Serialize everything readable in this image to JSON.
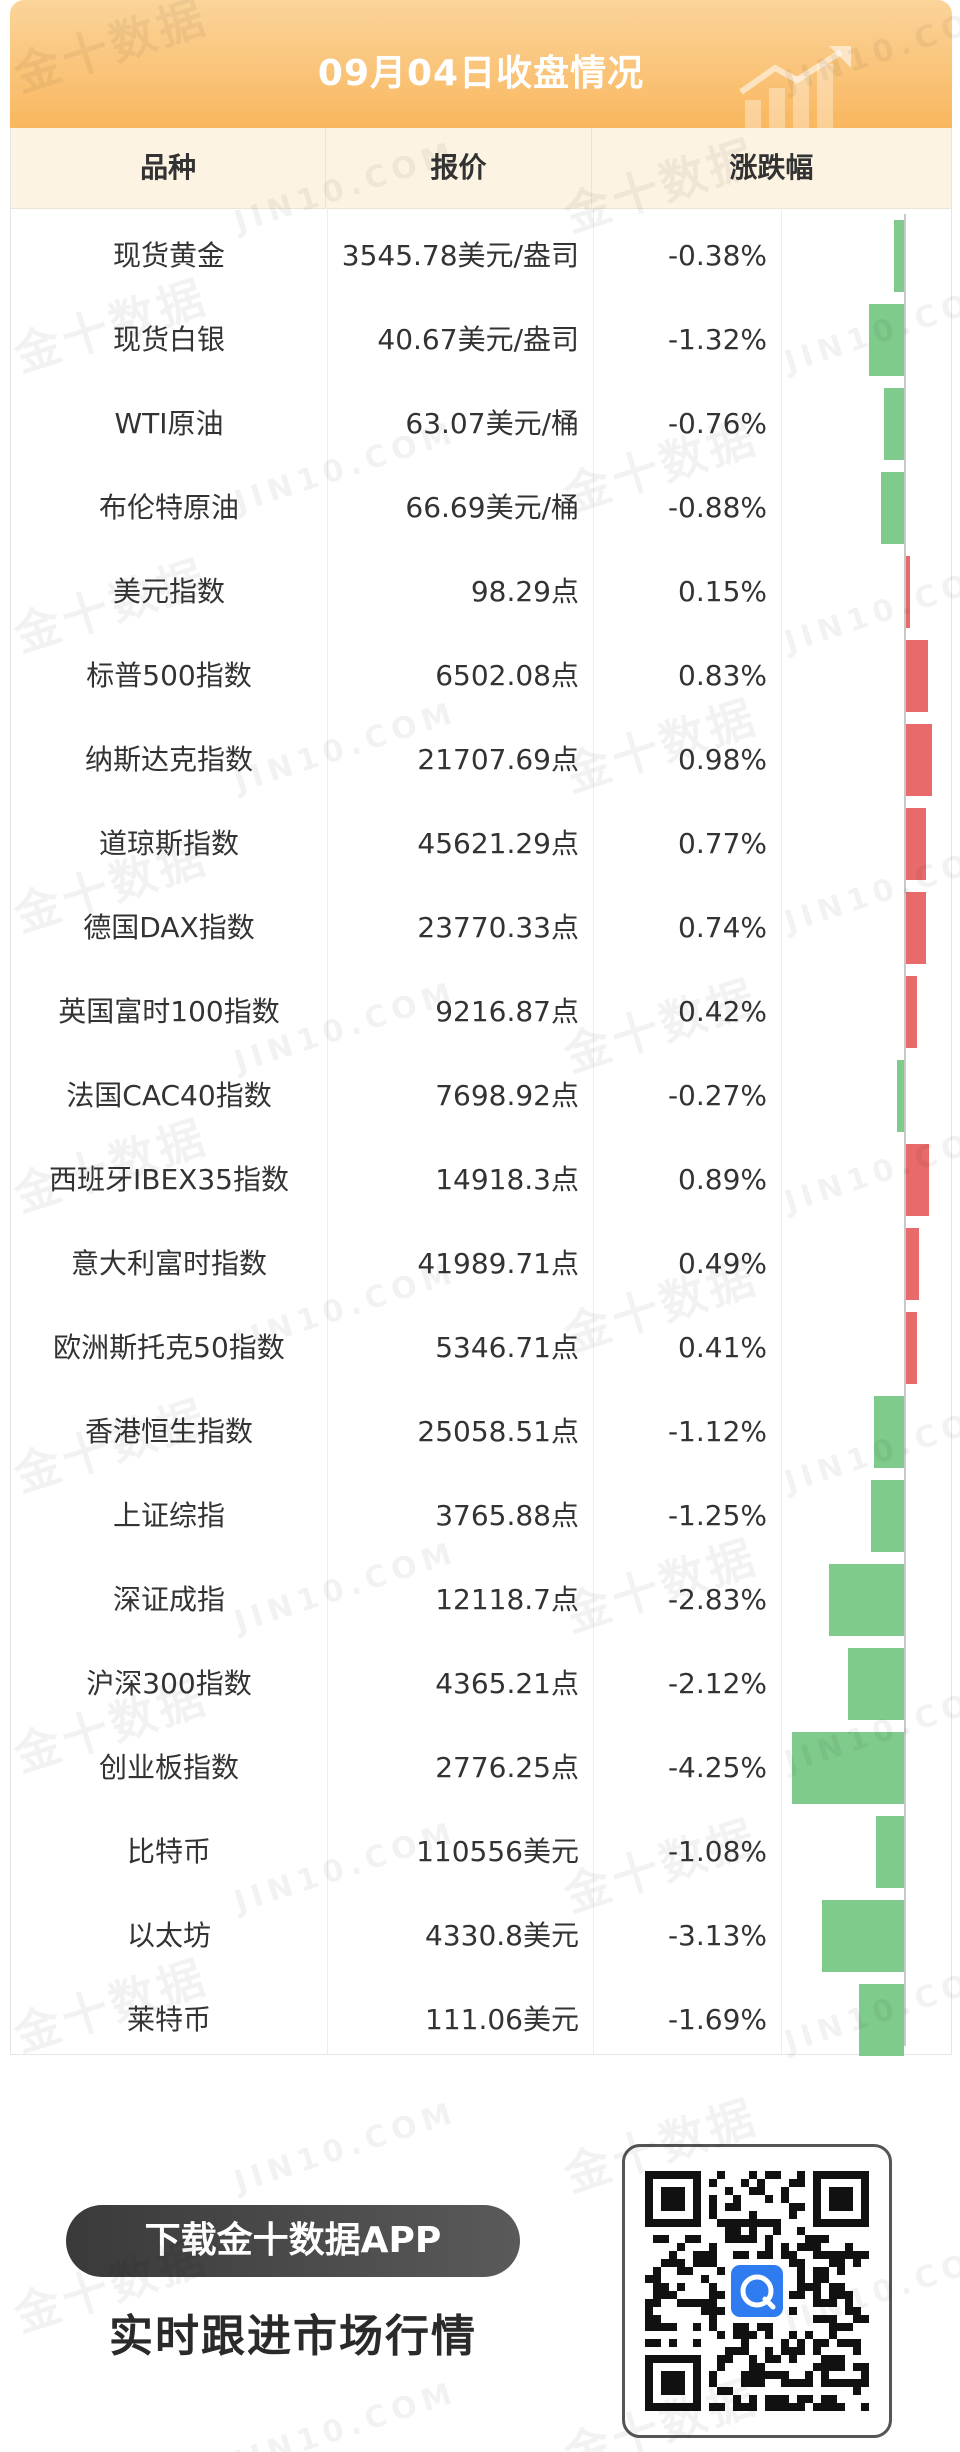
{
  "header": {
    "title": "09月04日收盘情况"
  },
  "table": {
    "columns": [
      "品种",
      "报价",
      "涨跌幅"
    ],
    "rows": [
      {
        "name": "现货黄金",
        "price": "3545.78美元/盎司",
        "change": "-0.38%",
        "value": -0.38
      },
      {
        "name": "现货白银",
        "price": "40.67美元/盎司",
        "change": "-1.32%",
        "value": -1.32
      },
      {
        "name": "WTI原油",
        "price": "63.07美元/桶",
        "change": "-0.76%",
        "value": -0.76
      },
      {
        "name": "布伦特原油",
        "price": "66.69美元/桶",
        "change": "-0.88%",
        "value": -0.88
      },
      {
        "name": "美元指数",
        "price": "98.29点",
        "change": "0.15%",
        "value": 0.15
      },
      {
        "name": "标普500指数",
        "price": "6502.08点",
        "change": "0.83%",
        "value": 0.83
      },
      {
        "name": "纳斯达克指数",
        "price": "21707.69点",
        "change": "0.98%",
        "value": 0.98
      },
      {
        "name": "道琼斯指数",
        "price": "45621.29点",
        "change": "0.77%",
        "value": 0.77
      },
      {
        "name": "德国DAX指数",
        "price": "23770.33点",
        "change": "0.74%",
        "value": 0.74
      },
      {
        "name": "英国富时100指数",
        "price": "9216.87点",
        "change": "0.42%",
        "value": 0.42
      },
      {
        "name": "法国CAC40指数",
        "price": "7698.92点",
        "change": "-0.27%",
        "value": -0.27
      },
      {
        "name": "西班牙IBEX35指数",
        "price": "14918.3点",
        "change": "0.89%",
        "value": 0.89
      },
      {
        "name": "意大利富时指数",
        "price": "41989.71点",
        "change": "0.49%",
        "value": 0.49
      },
      {
        "name": "欧洲斯托克50指数",
        "price": "5346.71点",
        "change": "0.41%",
        "value": 0.41
      },
      {
        "name": "香港恒生指数",
        "price": "25058.51点",
        "change": "-1.12%",
        "value": -1.12
      },
      {
        "name": "上证综指",
        "price": "3765.88点",
        "change": "-1.25%",
        "value": -1.25
      },
      {
        "name": "深证成指",
        "price": "12118.7点",
        "change": "-2.83%",
        "value": -2.83
      },
      {
        "name": "沪深300指数",
        "price": "4365.21点",
        "change": "-2.12%",
        "value": -2.12
      },
      {
        "name": "创业板指数",
        "price": "2776.25点",
        "change": "-4.25%",
        "value": -4.25
      },
      {
        "name": "比特币",
        "price": "110556美元",
        "change": "-1.08%",
        "value": -1.08
      },
      {
        "name": "以太坊",
        "price": "4330.8美元",
        "change": "-3.13%",
        "value": -3.13
      },
      {
        "name": "莱特币",
        "price": "111.06美元",
        "change": "-1.69%",
        "value": -1.69
      }
    ]
  },
  "colors": {
    "up": "#e86a6a",
    "down": "#7fcb8c",
    "accent": "#f9b75f"
  },
  "footer": {
    "button_label": "下载金十数据APP",
    "slogan": "实时跟进市场行情"
  },
  "watermark": {
    "cn": "金十数据",
    "en": "JIN10.COM"
  }
}
